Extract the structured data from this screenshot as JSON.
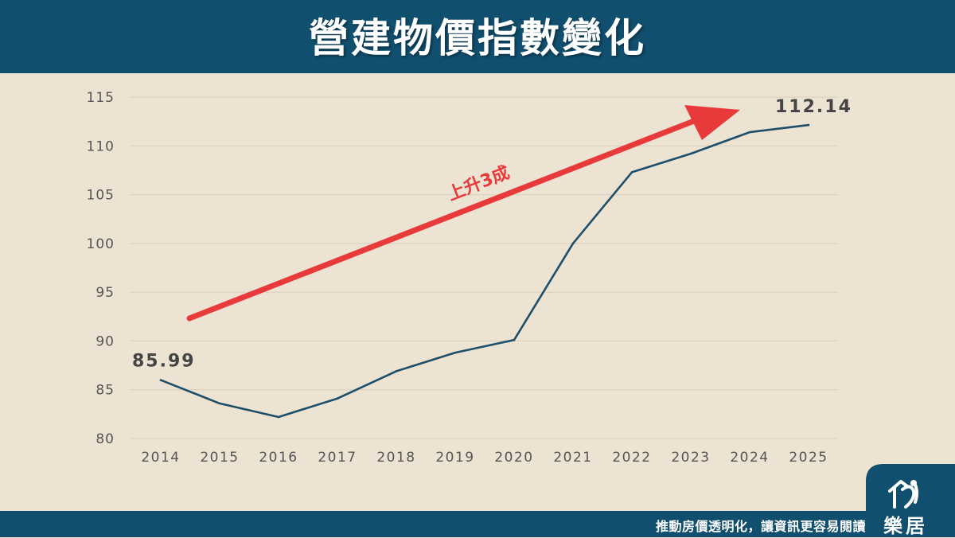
{
  "header": {
    "title": "營建物價指數變化"
  },
  "footer": {
    "slogan": "推動房價透明化，讓資訊更容易閱讀"
  },
  "logo": {
    "text": "樂居",
    "icon": "house-silhouette-icon"
  },
  "colors": {
    "header_bg": "#104f6e",
    "background": "#ede3d2",
    "line": "#1d4f6b",
    "arrow": "#e8393b",
    "grid": "#d8cfbf",
    "axis_text": "#555555"
  },
  "chart_data": {
    "type": "line",
    "title": "營建物價指數變化",
    "xlabel": "",
    "ylabel": "",
    "ylim": [
      80,
      115
    ],
    "yticks": [
      80,
      85,
      90,
      95,
      100,
      105,
      110,
      115
    ],
    "grid": true,
    "categories": [
      "2014",
      "2015",
      "2016",
      "2017",
      "2018",
      "2019",
      "2020",
      "2021",
      "2022",
      "2023",
      "2024",
      "2025"
    ],
    "series": [
      {
        "values": [
          85.99,
          83.6,
          82.2,
          84.1,
          86.9,
          88.8,
          90.1,
          100.0,
          107.3,
          109.2,
          111.4,
          112.14
        ]
      }
    ],
    "data_labels": [
      {
        "category": "2014",
        "text": "85.99"
      },
      {
        "category": "2025",
        "text": "112.14"
      }
    ],
    "annotation": {
      "text": "上升3成",
      "style": "red trend arrow"
    }
  }
}
